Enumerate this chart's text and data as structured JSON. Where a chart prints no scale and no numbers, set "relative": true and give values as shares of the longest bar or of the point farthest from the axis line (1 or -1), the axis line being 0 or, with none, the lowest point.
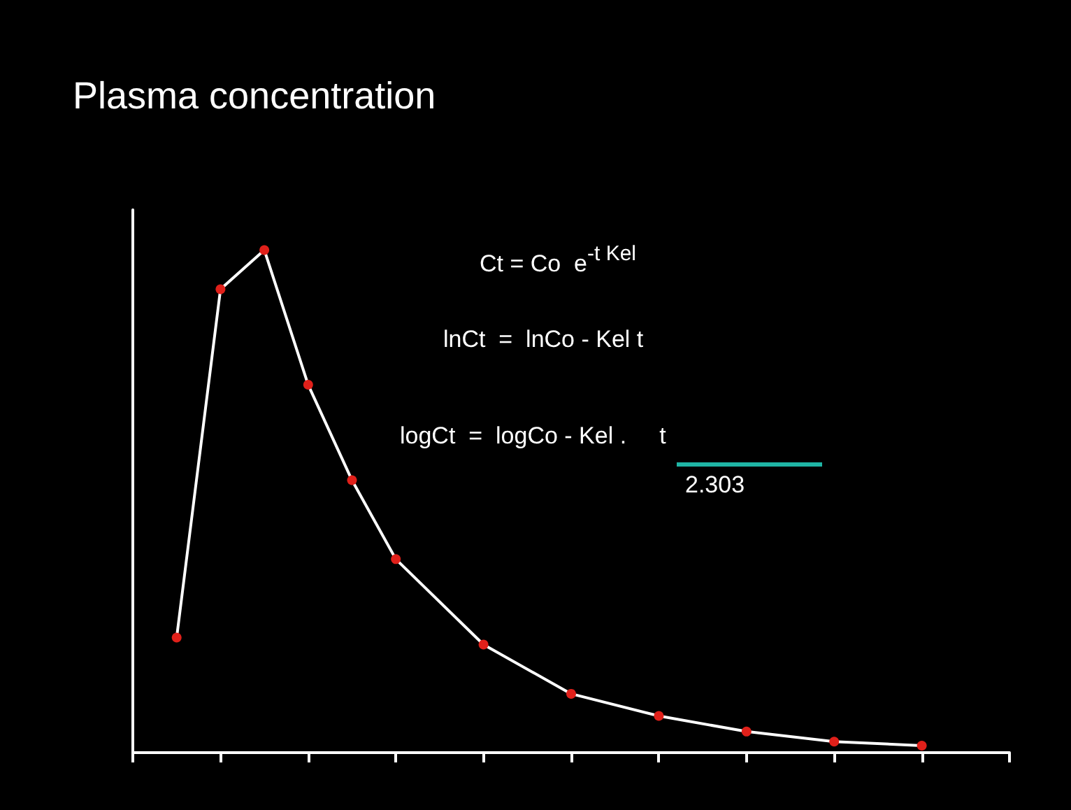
{
  "chart_data": {
    "type": "line",
    "title": "Plasma concentration",
    "relative": true,
    "categories": [
      null,
      null,
      null,
      null,
      null,
      null,
      null,
      null,
      null,
      null,
      null,
      null,
      null,
      null,
      null,
      null,
      null,
      null,
      null,
      null,
      null
    ],
    "series": [
      {
        "color": "#ffffff",
        "values": [
          null,
          0.229,
          0.922,
          1,
          0.732,
          0.542,
          0.385,
          null,
          0.215,
          null,
          0.117,
          null,
          0.073,
          null,
          0.042,
          null,
          0.022,
          null,
          0.014,
          null,
          null
        ]
      }
    ],
    "grid": false,
    "marker": "circle",
    "line_style": "solid",
    "annotations": [
      "Ct = Co  e$^{-t Kel}$",
      "lnCt  =  lnCo - Kel t",
      "logCt  =  logCo - Kel .     t",
      "2.303"
    ]
  }
}
